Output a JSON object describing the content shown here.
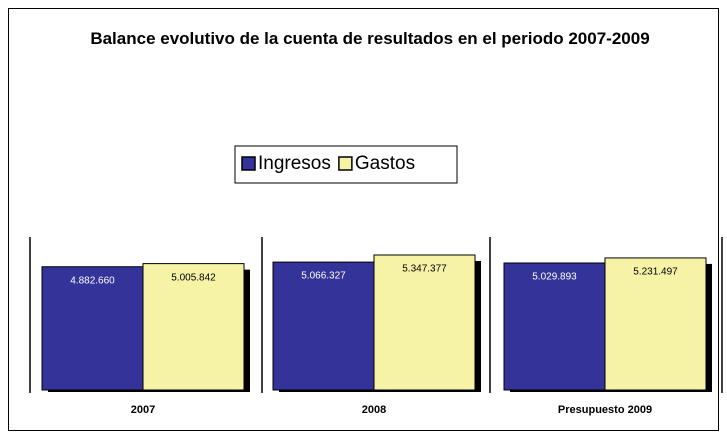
{
  "chart_data": {
    "type": "bar",
    "title": "Balance evolutivo de la cuenta de resultados en el periodo 2007-2009",
    "categories": [
      "2007",
      "2008",
      "Presupuesto 2009"
    ],
    "series": [
      {
        "name": "Ingresos",
        "color": "#333399",
        "values": [
          4882660,
          5066327,
          5029893
        ],
        "value_labels": [
          "4.882.660",
          "5.066.327",
          "5.029.893"
        ]
      },
      {
        "name": "Gastos",
        "color": "#f7f3a6",
        "values": [
          5005842,
          5347377,
          5231497
        ],
        "value_labels": [
          "5.005.842",
          "5.347.377",
          "5.231.497"
        ]
      }
    ]
  }
}
